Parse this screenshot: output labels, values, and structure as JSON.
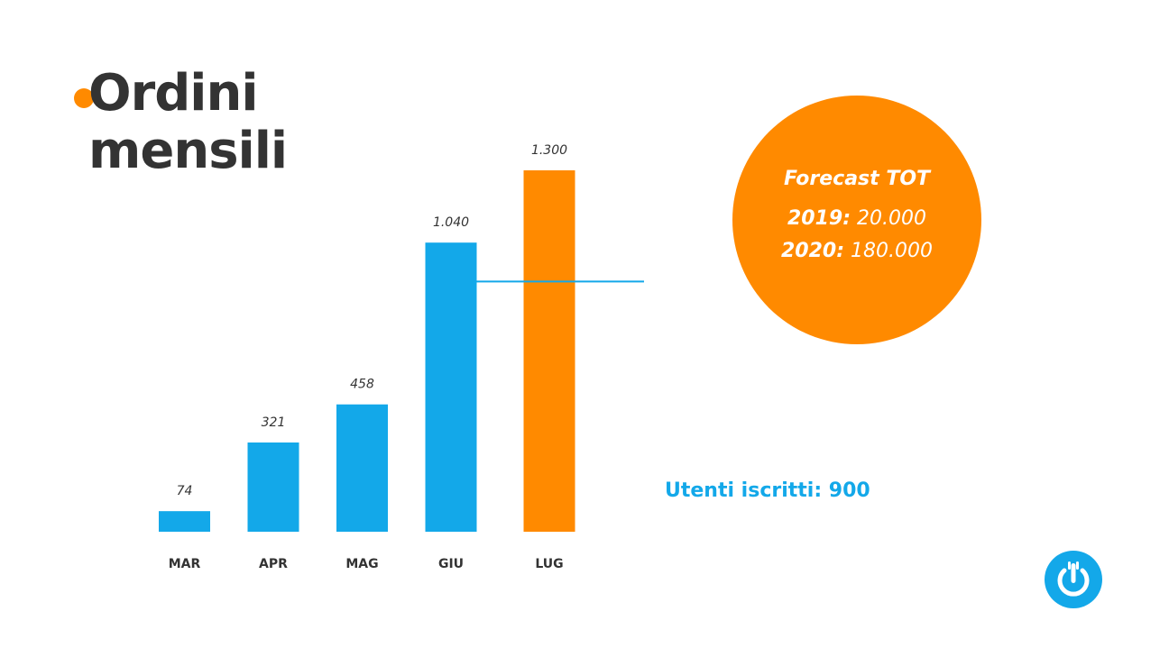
{
  "title": {
    "line1": "Ordini",
    "line2": "mensili"
  },
  "colors": {
    "blue": "#13a8e9",
    "orange": "#ff8a00",
    "text": "#333333"
  },
  "chart_data": {
    "type": "bar",
    "categories": [
      "MAR",
      "APR",
      "MAG",
      "GIU",
      "LUG"
    ],
    "values": [
      74,
      321,
      458,
      1040,
      1300
    ],
    "value_labels": [
      "74",
      "321",
      "458",
      "1.040",
      "1.300"
    ],
    "bar_colors": [
      "#13a8e9",
      "#13a8e9",
      "#13a8e9",
      "#13a8e9",
      "#ff8a00"
    ],
    "ylim": [
      0,
      1300
    ],
    "grid": false,
    "annotation": {
      "text": "Utenti iscritti: 900",
      "value": 900,
      "category": "GIU"
    }
  },
  "forecast": {
    "title": "Forecast TOT",
    "y2019_label": "2019:",
    "y2019_value": "20.000",
    "y2020_label": "2020:",
    "y2020_value": "180.000"
  },
  "logo": {
    "icon": "power-fork-icon"
  }
}
